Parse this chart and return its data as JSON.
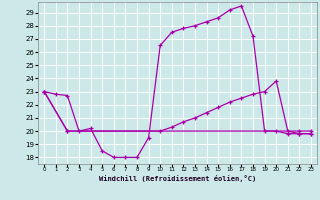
{
  "xlabel": "Windchill (Refroidissement éolien,°C)",
  "bg_color": "#cce8e8",
  "grid_color": "#ffffff",
  "line_color": "#aa00aa",
  "xlim": [
    -0.5,
    23.5
  ],
  "ylim": [
    17.5,
    29.8
  ],
  "yticks": [
    18,
    19,
    20,
    21,
    22,
    23,
    24,
    25,
    26,
    27,
    28,
    29
  ],
  "xticks": [
    0,
    1,
    2,
    3,
    4,
    5,
    6,
    7,
    8,
    9,
    10,
    11,
    12,
    13,
    14,
    15,
    16,
    17,
    18,
    19,
    20,
    21,
    22,
    23
  ],
  "line1_x": [
    0,
    1,
    2,
    3,
    4,
    5,
    6,
    7,
    8,
    9,
    10,
    11,
    12,
    13,
    14,
    15,
    16,
    17,
    18,
    19,
    20,
    21,
    22,
    23
  ],
  "line1_y": [
    23,
    22.8,
    22.7,
    20.0,
    20.2,
    18.5,
    18.0,
    18.0,
    18.0,
    19.5,
    26.5,
    27.5,
    27.8,
    28.0,
    28.3,
    28.6,
    29.2,
    29.5,
    27.2,
    20.0,
    20.0,
    19.8,
    19.8,
    19.8
  ],
  "line2_x": [
    0,
    2,
    10,
    11,
    12,
    13,
    14,
    15,
    16,
    17,
    18,
    19,
    20,
    21,
    22,
    23
  ],
  "line2_y": [
    23,
    20,
    20,
    20.3,
    20.7,
    21.0,
    21.4,
    21.8,
    22.2,
    22.5,
    22.8,
    23.0,
    23.8,
    20.0,
    19.8,
    19.8
  ],
  "line3_x": [
    0,
    2,
    22,
    23
  ],
  "line3_y": [
    23,
    20,
    20,
    20
  ]
}
